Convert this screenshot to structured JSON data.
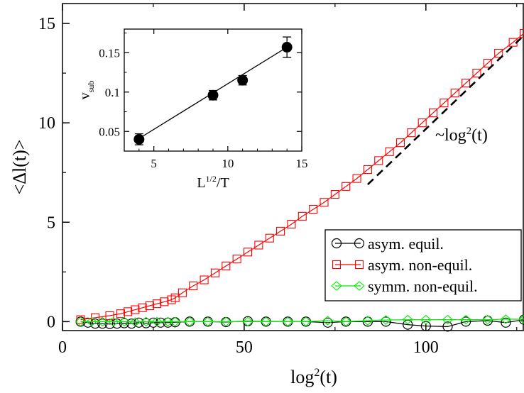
{
  "chart_data": [
    {
      "type": "line",
      "role": "main",
      "xlabel": "log²(t)",
      "xlabel_parts": [
        "log",
        "2",
        "(t)"
      ],
      "ylabel": "<Δl(t)>",
      "xlim": [
        0,
        127
      ],
      "ylim": [
        -0.45,
        16
      ],
      "xticks": [
        0,
        50,
        100
      ],
      "yticks": [
        0,
        5,
        10,
        15
      ],
      "grid": false,
      "legend_position": "center-right",
      "series": [
        {
          "name": "asym. equil.",
          "color": "#000000",
          "marker": "circle",
          "x": [
            5,
            7,
            9,
            11,
            13,
            15,
            17,
            19,
            21,
            23,
            25,
            27,
            29,
            31,
            35,
            40,
            45,
            51,
            56,
            62,
            67,
            73,
            78,
            84,
            89,
            95,
            100,
            106,
            111,
            117,
            122,
            127
          ],
          "y": [
            0.0,
            -0.05,
            -0.1,
            -0.1,
            -0.12,
            -0.1,
            -0.08,
            -0.1,
            -0.05,
            -0.08,
            -0.05,
            -0.05,
            -0.05,
            -0.03,
            0.0,
            0.0,
            -0.02,
            0.02,
            0.0,
            0.0,
            0.0,
            -0.05,
            0.0,
            0.0,
            0.0,
            -0.15,
            -0.22,
            -0.25,
            0.0,
            0.05,
            -0.05,
            0.1
          ]
        },
        {
          "name": "asym. non-equil.",
          "color": "#ff0000",
          "marker": "square",
          "x": [
            5,
            9,
            13,
            16,
            18,
            20,
            22,
            24,
            26,
            28,
            30,
            31,
            33,
            36,
            39,
            42,
            45,
            48,
            51,
            54,
            57,
            60,
            63,
            66,
            69,
            72,
            75,
            78,
            81,
            84,
            87,
            90,
            93,
            96,
            99,
            102,
            105,
            108,
            111,
            114,
            117,
            120,
            124,
            127
          ],
          "y": [
            0.1,
            0.2,
            0.3,
            0.4,
            0.5,
            0.6,
            0.7,
            0.8,
            0.9,
            1.0,
            1.1,
            1.2,
            1.45,
            1.8,
            2.1,
            2.45,
            2.8,
            3.15,
            3.5,
            3.85,
            4.2,
            4.55,
            4.9,
            5.3,
            5.65,
            6.0,
            6.4,
            6.8,
            7.2,
            7.65,
            8.1,
            8.55,
            9.0,
            9.5,
            10.0,
            10.5,
            11.0,
            11.5,
            12.0,
            12.5,
            13.0,
            13.5,
            14.05,
            14.5
          ]
        },
        {
          "name": "symm. non-equil.",
          "color": "#00ee00",
          "marker": "diamond",
          "x": [
            5,
            8,
            11,
            14,
            17,
            20,
            23,
            26,
            29,
            31,
            35,
            40,
            45,
            51,
            56,
            62,
            67,
            73,
            78,
            84,
            89,
            95,
            100,
            106,
            111,
            117,
            122,
            127
          ],
          "y": [
            0.0,
            0.0,
            0.0,
            0.0,
            0.0,
            -0.02,
            0.0,
            0.0,
            0.0,
            0.0,
            0.0,
            0.0,
            0.0,
            0.0,
            0.0,
            0.0,
            0.0,
            0.05,
            0.0,
            0.05,
            0.08,
            0.1,
            0.1,
            0.1,
            0.1,
            0.1,
            0.12,
            0.12
          ]
        }
      ],
      "reference_line": {
        "label_prefix": "~log",
        "label_sup": "2",
        "label_suffix": "(t)",
        "style": "dashed",
        "color": "#000000",
        "x": [
          84,
          127
        ],
        "y": [
          6.9,
          14.4
        ]
      }
    },
    {
      "type": "scatter",
      "role": "inset",
      "xlabel": "L^{1/2}/T",
      "xlabel_parts": [
        "L",
        "1/2",
        "/T"
      ],
      "ylabel": "v_sub",
      "ylabel_parts": [
        "v",
        "sub"
      ],
      "xlim": [
        3,
        15
      ],
      "ylim": [
        0.025,
        0.18
      ],
      "xticks": [
        5,
        10,
        15
      ],
      "yticks": [
        0.05,
        0.1,
        0.15
      ],
      "ytick_labels": [
        "0.05",
        "0.1",
        "0.15"
      ],
      "grid": false,
      "points": [
        {
          "x": 4,
          "y": 0.04,
          "err": 0.007
        },
        {
          "x": 9,
          "y": 0.096,
          "err": 0.006
        },
        {
          "x": 11,
          "y": 0.115,
          "err": 0.006
        },
        {
          "x": 14,
          "y": 0.157,
          "err": 0.013
        }
      ],
      "fit_line": {
        "x": [
          4,
          14
        ],
        "y": [
          0.041,
          0.157
        ]
      }
    }
  ]
}
